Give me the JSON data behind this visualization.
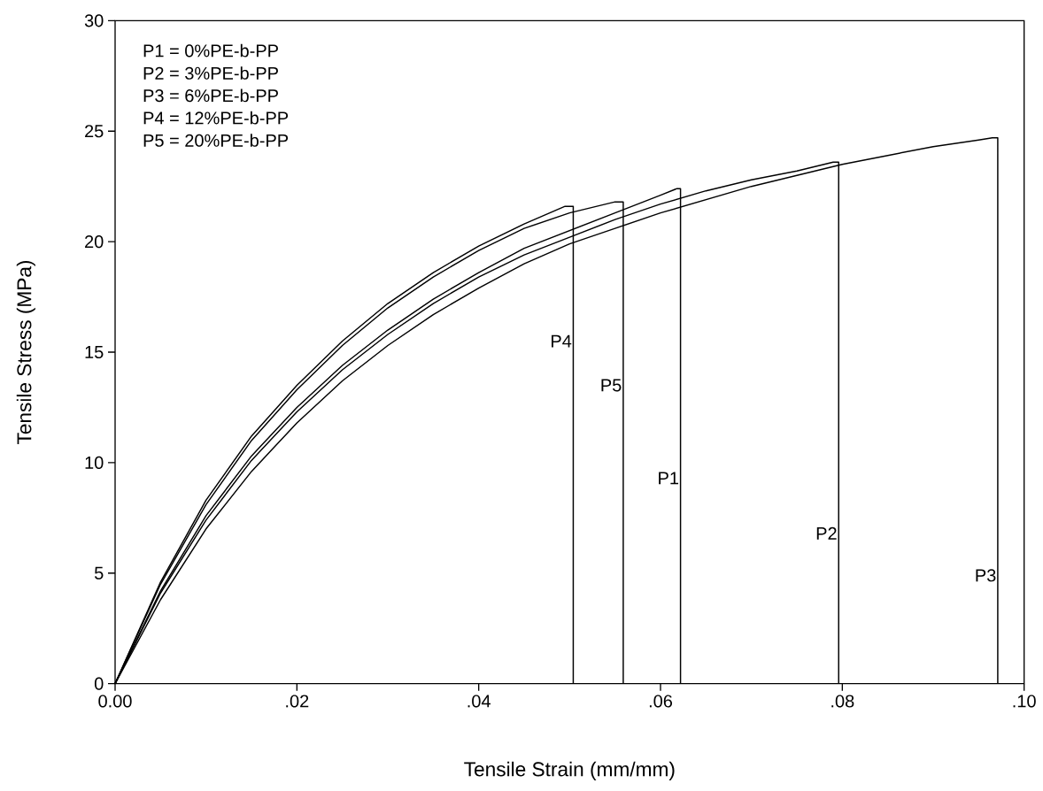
{
  "chart_data": {
    "type": "line",
    "xlabel": "Tensile Strain (mm/mm)",
    "ylabel": "Tensile Stress (MPa)",
    "xlim": [
      0,
      0.1
    ],
    "ylim": [
      0,
      30
    ],
    "xticks": [
      {
        "value": 0,
        "label": "0.00"
      },
      {
        "value": 0.02,
        "label": ".02"
      },
      {
        "value": 0.04,
        "label": ".04"
      },
      {
        "value": 0.06,
        "label": ".06"
      },
      {
        "value": 0.08,
        "label": ".08"
      },
      {
        "value": 0.1,
        "label": ".10"
      }
    ],
    "yticks": [
      0,
      5,
      10,
      15,
      20,
      25,
      30
    ],
    "series": [
      {
        "color": "#000000",
        "x": [
          0,
          0.005,
          0.01,
          0.015,
          0.02,
          0.025,
          0.03,
          0.035,
          0.04,
          0.045,
          0.05,
          0.055,
          0.06,
          0.0618,
          0.0622,
          0.0622
        ],
        "values": [
          0,
          4.2,
          7.6,
          10.3,
          12.5,
          14.4,
          16.0,
          17.4,
          18.6,
          19.7,
          20.5,
          21.3,
          22.1,
          22.4,
          22.4,
          0
        ]
      },
      {
        "color": "#000000",
        "x": [
          0,
          0.005,
          0.01,
          0.015,
          0.02,
          0.025,
          0.03,
          0.035,
          0.04,
          0.045,
          0.05,
          0.055,
          0.06,
          0.065,
          0.07,
          0.075,
          0.079,
          0.0796,
          0.0796
        ],
        "values": [
          0,
          4.1,
          7.4,
          10.1,
          12.3,
          14.2,
          15.8,
          17.2,
          18.4,
          19.4,
          20.2,
          21.0,
          21.7,
          22.3,
          22.8,
          23.2,
          23.6,
          23.6,
          0
        ]
      },
      {
        "color": "#000000",
        "x": [
          0,
          0.005,
          0.01,
          0.015,
          0.02,
          0.025,
          0.03,
          0.035,
          0.04,
          0.045,
          0.05,
          0.055,
          0.06,
          0.065,
          0.07,
          0.075,
          0.08,
          0.085,
          0.09,
          0.095,
          0.0965,
          0.0971,
          0.0971
        ],
        "values": [
          0,
          3.8,
          7.0,
          9.6,
          11.8,
          13.7,
          15.3,
          16.7,
          17.9,
          19.0,
          19.9,
          20.6,
          21.3,
          21.9,
          22.5,
          23.0,
          23.5,
          23.9,
          24.3,
          24.6,
          24.7,
          24.7,
          0
        ]
      },
      {
        "color": "#000000",
        "x": [
          0,
          0.005,
          0.01,
          0.015,
          0.02,
          0.025,
          0.03,
          0.035,
          0.04,
          0.045,
          0.0495,
          0.0504,
          0.0504
        ],
        "values": [
          0,
          4.6,
          8.3,
          11.2,
          13.5,
          15.5,
          17.2,
          18.6,
          19.8,
          20.8,
          21.6,
          21.6,
          0
        ]
      },
      {
        "color": "#000000",
        "x": [
          0,
          0.005,
          0.01,
          0.015,
          0.02,
          0.025,
          0.03,
          0.035,
          0.04,
          0.045,
          0.05,
          0.055,
          0.0559,
          0.0559
        ],
        "values": [
          0,
          4.5,
          8.1,
          11.0,
          13.3,
          15.3,
          17.0,
          18.4,
          19.6,
          20.6,
          21.3,
          21.8,
          21.8,
          0
        ]
      }
    ],
    "annotations": [
      "P1 = 0%PE-b-PP",
      "P2 = 3%PE-b-PP",
      "P3 = 6%PE-b-PP",
      "P4 = 12%PE-b-PP",
      "P5 = 20%PE-b-PP",
      {
        "text": "P4",
        "x": 0.0504,
        "y": 15.5
      },
      {
        "text": "P5",
        "x": 0.0559,
        "y": 13.5
      },
      {
        "text": "P1",
        "x": 0.0622,
        "y": 9.3
      },
      {
        "text": "P2",
        "x": 0.0796,
        "y": 6.8
      },
      {
        "text": "P3",
        "x": 0.0971,
        "y": 4.9
      }
    ]
  }
}
